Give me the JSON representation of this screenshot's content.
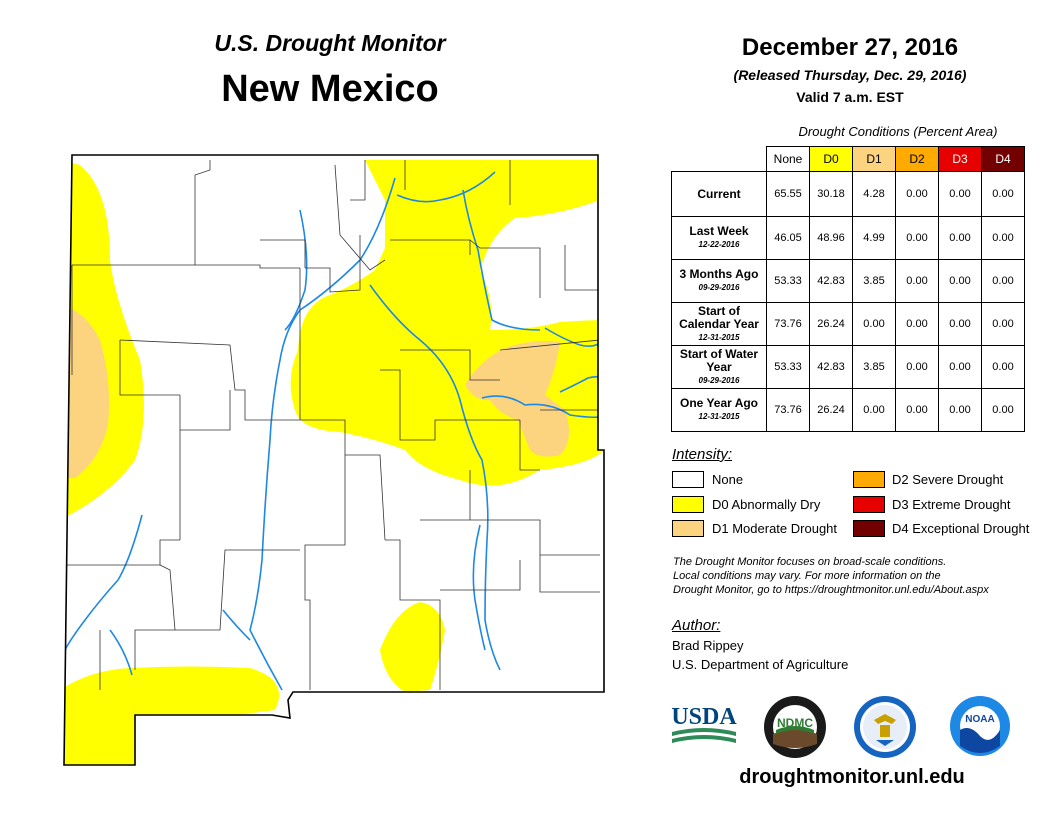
{
  "header": {
    "title_small": "U.S. Drought Monitor",
    "title_big": "New Mexico",
    "date": "December 27, 2016",
    "released": "(Released Thursday, Dec. 29, 2016)",
    "valid": "Valid 7 a.m. EST"
  },
  "table": {
    "caption": "Drought Conditions (Percent Area)",
    "columns": [
      "None",
      "D0",
      "D1",
      "D2",
      "D3",
      "D4"
    ],
    "column_colors": [
      "#ffffff",
      "#ffff00",
      "#fcd37f",
      "#ffaa00",
      "#e60000",
      "#730000"
    ],
    "rows": [
      {
        "label": "Current",
        "sub": "",
        "values": [
          "65.55",
          "30.18",
          "4.28",
          "0.00",
          "0.00",
          "0.00"
        ]
      },
      {
        "label": "Last Week",
        "sub": "12-22-2016",
        "values": [
          "46.05",
          "48.96",
          "4.99",
          "0.00",
          "0.00",
          "0.00"
        ]
      },
      {
        "label": "3 Months Ago",
        "sub": "09-29-2016",
        "values": [
          "53.33",
          "42.83",
          "3.85",
          "0.00",
          "0.00",
          "0.00"
        ]
      },
      {
        "label": "Start of Calendar Year",
        "sub": "12-31-2015",
        "values": [
          "73.76",
          "26.24",
          "0.00",
          "0.00",
          "0.00",
          "0.00"
        ]
      },
      {
        "label": "Start of Water Year",
        "sub": "09-29-2016",
        "values": [
          "53.33",
          "42.83",
          "3.85",
          "0.00",
          "0.00",
          "0.00"
        ]
      },
      {
        "label": "One Year Ago",
        "sub": "12-31-2015",
        "values": [
          "73.76",
          "26.24",
          "0.00",
          "0.00",
          "0.00",
          "0.00"
        ]
      }
    ]
  },
  "legend": {
    "title": "Intensity:",
    "items": [
      {
        "label": "None",
        "color": "#ffffff"
      },
      {
        "label": "D0 Abnormally Dry",
        "color": "#ffff00"
      },
      {
        "label": "D1 Moderate Drought",
        "color": "#fcd37f"
      },
      {
        "label": "D2 Severe Drought",
        "color": "#ffaa00"
      },
      {
        "label": "D3 Extreme Drought",
        "color": "#e60000"
      },
      {
        "label": "D4 Exceptional Drought",
        "color": "#730000"
      }
    ]
  },
  "note": {
    "line1": "The Drought Monitor focuses on broad-scale conditions.",
    "line2": "Local conditions may vary. For more information on the",
    "line3": "Drought Monitor, go to https://droughtmonitor.unl.edu/About.aspx"
  },
  "author": {
    "title": "Author:",
    "name": "Brad Rippey",
    "org": "U.S. Department of Agriculture"
  },
  "logos": {
    "usda": "USDA",
    "ndmc": "NDMC",
    "noaa": "NOAA"
  },
  "website": "droughtmonitor.unl.edu",
  "colors": {
    "d0": "#ffff00",
    "d1": "#fcd37f",
    "river": "#1e88e5",
    "usda_blue": "#00457c",
    "usda_green": "#2e8b57"
  }
}
